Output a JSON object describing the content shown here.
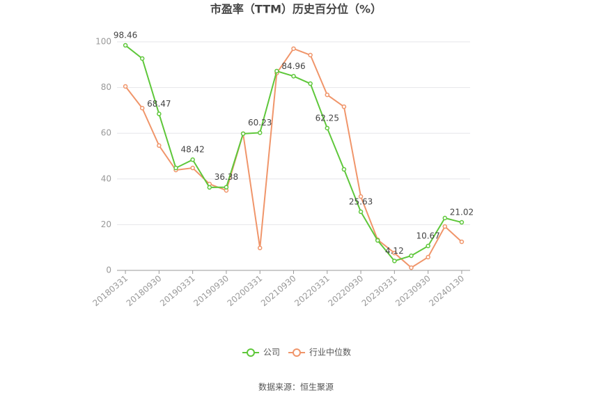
{
  "chart_data": {
    "type": "line",
    "title": "市盈率（TTM）历史百分位（%）",
    "categories": [
      "20180331",
      null,
      "20180930",
      null,
      "20190331",
      null,
      "20190930",
      null,
      "20200331",
      null,
      "20210930",
      null,
      "20220331",
      null,
      "20220930",
      null,
      "20230331",
      null,
      "20230930",
      null,
      "20240130"
    ],
    "series": [
      {
        "name": "公司",
        "color": "#5ec73a",
        "values": [
          98.46,
          92.7,
          68.47,
          44.8,
          48.42,
          36.3,
          36.38,
          59.8,
          60.23,
          87.2,
          84.96,
          81.7,
          62.25,
          44.2,
          25.63,
          13.1,
          4.12,
          6.4,
          10.67,
          22.9,
          21.02
        ]
      },
      {
        "name": "行业中位数",
        "color": "#f0956a",
        "values": [
          80.5,
          71,
          54.6,
          43.9,
          44.8,
          37.8,
          35,
          59.8,
          9.8,
          86.3,
          97,
          94.2,
          76.8,
          71.6,
          32.3,
          13.4,
          7.6,
          1.2,
          5.8,
          19.2,
          12.5
        ]
      }
    ],
    "ylim": [
      0,
      100
    ],
    "yticks": [
      0,
      20,
      40,
      60,
      80,
      100
    ],
    "grid": true,
    "source": "数据来源：恒生聚源"
  }
}
